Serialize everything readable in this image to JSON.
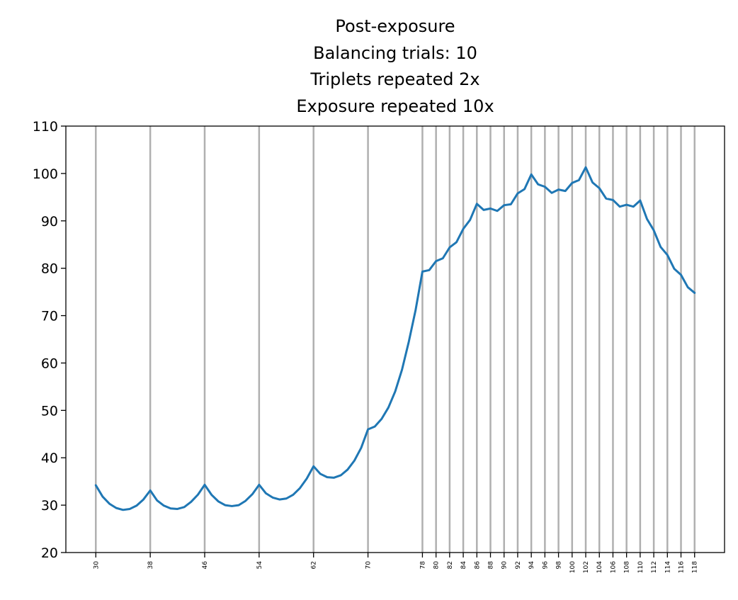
{
  "chart_data": {
    "type": "line",
    "title_lines": [
      "Post-exposure",
      "Balancing trials: 10",
      "Triplets repeated 2x",
      "Exposure repeated 10x"
    ],
    "xlabel": "",
    "ylabel": "",
    "xlim": [
      25.6,
      122.4
    ],
    "ylim": [
      20,
      110
    ],
    "yticks": [
      20,
      30,
      40,
      50,
      60,
      70,
      80,
      90,
      100,
      110
    ],
    "xticks": [
      30,
      38,
      46,
      54,
      62,
      70,
      78,
      80,
      82,
      84,
      86,
      88,
      90,
      92,
      94,
      96,
      98,
      100,
      102,
      104,
      106,
      108,
      110,
      112,
      114,
      116,
      118
    ],
    "grid": "vertical lines at x ticks",
    "legend": "none",
    "colors": {
      "line": "#1f77b4",
      "grid": "#b0b0b0",
      "axis": "#000000"
    },
    "series": [
      {
        "x": [
          30,
          31,
          32,
          33,
          34,
          35,
          36,
          37,
          38,
          39,
          40,
          41,
          42,
          43,
          44,
          45,
          46,
          47,
          48,
          49,
          50,
          51,
          52,
          53,
          54,
          55,
          56,
          57,
          58,
          59,
          60,
          61,
          62,
          63,
          64,
          65,
          66,
          67,
          68,
          69,
          70,
          71,
          72,
          73,
          74,
          75,
          76,
          77,
          78,
          79,
          80,
          81,
          82,
          83,
          84,
          85,
          86,
          87,
          88,
          89,
          90,
          91,
          92,
          93,
          94,
          95,
          96,
          97,
          98,
          99,
          100,
          101,
          102,
          103,
          104,
          105,
          106,
          107,
          108,
          109,
          110,
          111,
          112,
          113,
          114,
          115,
          116,
          117,
          118
        ],
        "y": [
          34.2,
          31.8,
          30.3,
          29.4,
          29.0,
          29.2,
          29.9,
          31.2,
          33.1,
          31.0,
          29.9,
          29.3,
          29.2,
          29.6,
          30.7,
          32.2,
          34.3,
          32.2,
          30.8,
          30.0,
          29.8,
          30.0,
          30.9,
          32.3,
          34.3,
          32.5,
          31.6,
          31.2,
          31.4,
          32.2,
          33.6,
          35.6,
          38.2,
          36.6,
          35.9,
          35.8,
          36.3,
          37.5,
          39.4,
          42.1,
          46.0,
          46.6,
          48.2,
          50.6,
          54.0,
          58.6,
          64.5,
          71.2,
          79.3,
          79.6,
          81.5,
          82.1,
          84.4,
          85.5,
          88.3,
          90.2,
          93.6,
          92.3,
          92.6,
          92.1,
          93.3,
          93.5,
          95.8,
          96.7,
          99.8,
          97.7,
          97.2,
          95.9,
          96.6,
          96.3,
          98.0,
          98.6,
          101.3,
          98.1,
          96.9,
          94.7,
          94.4,
          93.0,
          93.4,
          93.0,
          94.3,
          90.4,
          88.0,
          84.5,
          82.8,
          79.9,
          78.6,
          76.0,
          74.8
        ]
      }
    ]
  }
}
